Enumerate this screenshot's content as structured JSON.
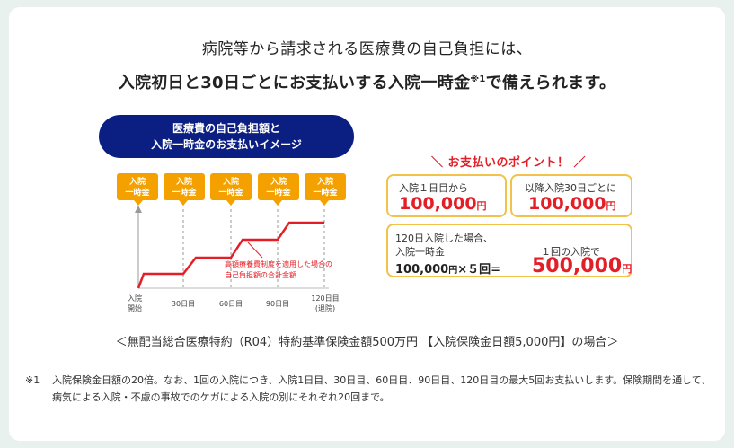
{
  "headline": {
    "line1": "病院等から請求される医療費の自己負担には、",
    "line2_text": "入院初日と30日ごとにお支払いする入院一時金",
    "line2_mark": "※1",
    "line2_tail": "で備えられます。"
  },
  "image_title": {
    "line1": "医療費の自己負担額と",
    "line2": "入院一時金のお支払いイメージ"
  },
  "timeline": {
    "badge_line1": "入院",
    "badge_line2": "一時金",
    "ticks": [
      {
        "line1": "入院",
        "line2": "開始"
      },
      {
        "line1": "30日目",
        "line2": ""
      },
      {
        "line1": "60日目",
        "line2": ""
      },
      {
        "line1": "90日目",
        "line2": ""
      },
      {
        "line1": "120日目",
        "line2": "(退院)"
      }
    ],
    "annotation_line1": "高額療養費制度を適用した場合の",
    "annotation_line2": "自己負担額の合計金額",
    "colors": {
      "badge": "#f4a100",
      "line": "#e41e26",
      "axis": "#999999"
    }
  },
  "points": {
    "title": "＼ お支払いのポイント！ ／",
    "box1_label": "入院１日目から",
    "box1_amount": "100,000",
    "box2_label": "以降入院30日ごとに",
    "box2_amount": "100,000",
    "unit": "円",
    "box3_label1": "120日入院した場合、",
    "box3_label2": "入院一時金",
    "box3_calc_amount": "100,000",
    "box3_calc_tail": "×５回=",
    "box3_right_label": "１回の入院で",
    "box3_total": "500,000"
  },
  "condition": "＜無配当総合医療特約（R04）特約基準保険金額500万円 【入院保険金日額5,000円】の場合＞",
  "footnote": {
    "mark": "※1",
    "text": "入院保険金日額の20倍。なお、1回の入院につき、入院1日目、30日目、60日目、90日目、120日目の最大5回お支払いします。保険期間を通して、病気による入院・不慮の事故でのケガによる入院の別にそれぞれ20回まで。"
  }
}
